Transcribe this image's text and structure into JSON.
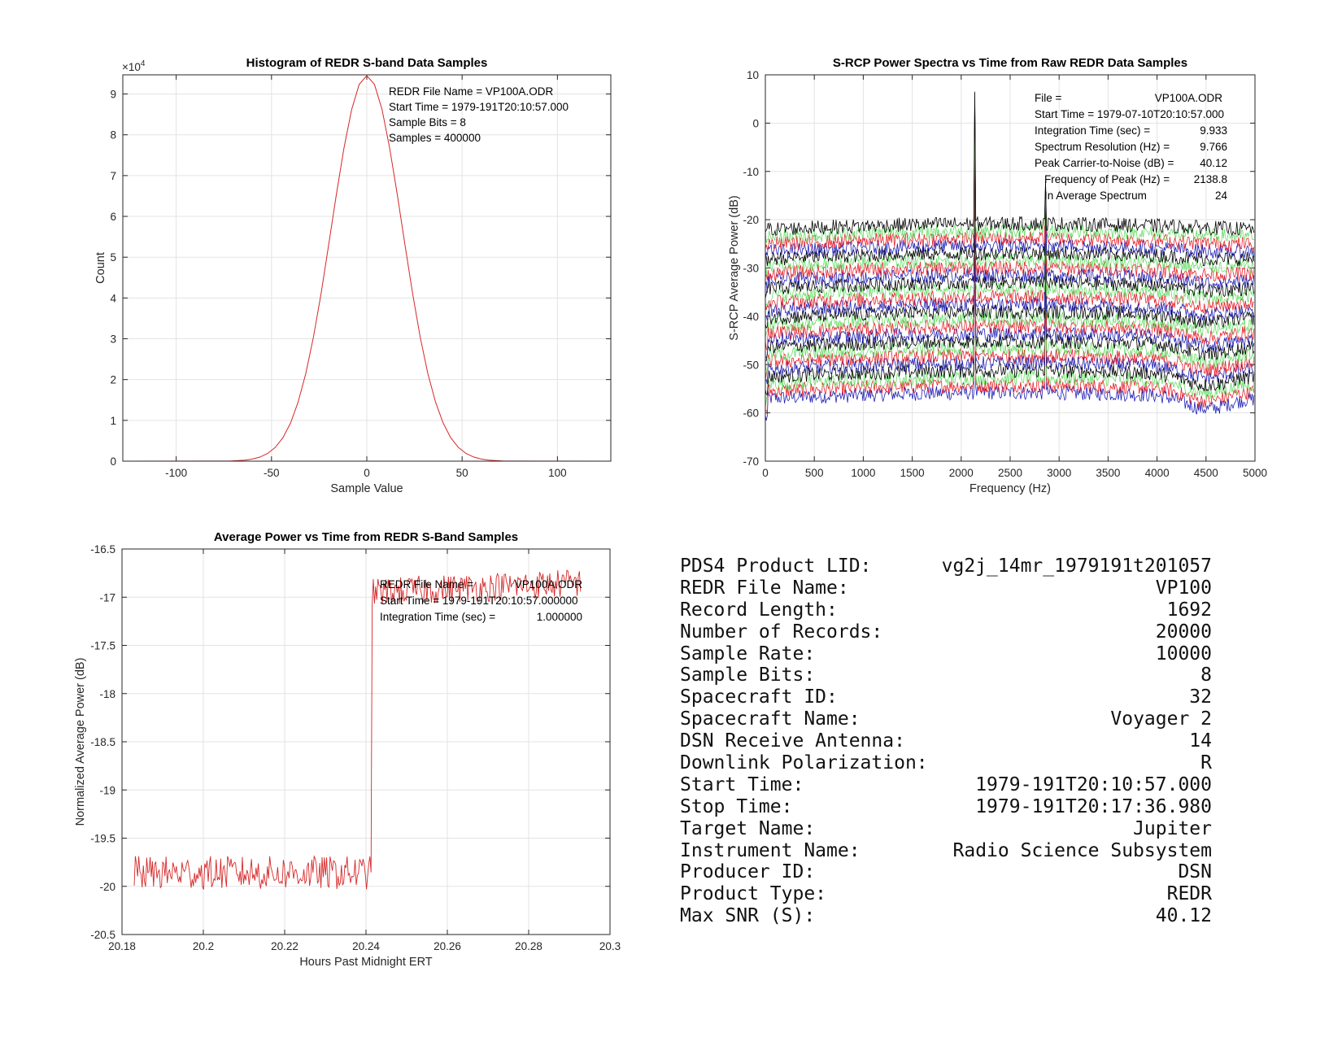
{
  "chart_data": [
    {
      "type": "line",
      "id": "histogram",
      "title": "Histogram of REDR S-band Data Samples",
      "xlabel": "Sample Value",
      "ylabel": "Count",
      "y_exponent_label": "×10",
      "y_exponent_power": "4",
      "xlim": [
        -128,
        128
      ],
      "ylim": [
        0,
        94700
      ],
      "xticks": [
        -100,
        -50,
        0,
        50,
        100
      ],
      "yticks": [
        0,
        10000,
        20000,
        30000,
        40000,
        50000,
        60000,
        70000,
        80000,
        90000
      ],
      "ytick_labels": [
        "0",
        "1",
        "2",
        "3",
        "4",
        "5",
        "6",
        "7",
        "8",
        "9"
      ],
      "grid": true,
      "color": "#d62728",
      "x": [
        -72,
        -64,
        -60,
        -56,
        -52,
        -48,
        -44,
        -40,
        -36,
        -32,
        -28,
        -24,
        -20,
        -16,
        -12,
        -8,
        -4,
        0,
        4,
        8,
        12,
        16,
        20,
        24,
        28,
        32,
        36,
        40,
        44,
        48,
        52,
        56,
        60,
        64,
        72
      ],
      "y": [
        20,
        250,
        520,
        1020,
        1900,
        3380,
        5760,
        9370,
        14530,
        21520,
        30450,
        41100,
        53030,
        65290,
        76740,
        86150,
        92340,
        94500,
        92340,
        86150,
        76740,
        65290,
        53030,
        41100,
        30450,
        21520,
        14530,
        9370,
        5760,
        3380,
        1900,
        1020,
        520,
        250,
        20
      ],
      "annotations": [
        "REDR File Name = VP100A.ODR",
        "Start Time = 1979-191T20:10:57.000",
        "Sample Bits = 8",
        "Samples = 400000"
      ]
    },
    {
      "type": "line",
      "id": "spectra",
      "title": "S-RCP Power Spectra vs Time from Raw REDR Data Samples",
      "xlabel": "Frequency (Hz)",
      "ylabel": "S-RCP Average Power (dB)",
      "xlim": [
        0,
        5000
      ],
      "ylim": [
        -70,
        10
      ],
      "xticks": [
        0,
        500,
        1000,
        1500,
        2000,
        2500,
        3000,
        3500,
        4000,
        4500,
        5000
      ],
      "yticks": [
        -70,
        -60,
        -50,
        -40,
        -30,
        -20,
        -10,
        0,
        10
      ],
      "grid": true,
      "series_count": 24,
      "series_colors": [
        "#000000",
        "#1f1fb4",
        "#e8202a",
        "#66dd66"
      ],
      "frequency_resolution_hz": 9.766,
      "lowest_series_level_db": -57,
      "highest_series_level_db": -22,
      "peaks": [
        {
          "frequency_hz": 2138.8,
          "max_db": 6.5
        },
        {
          "frequency_hz": 2860,
          "max_db": -12
        }
      ],
      "annotations": [
        {
          "label": "File =",
          "value": "VP100A.ODR"
        },
        {
          "label": "Start Time = 1979-07-10T20:10:57.000",
          "value": ""
        },
        {
          "label": "Integration Time (sec) =",
          "value": "9.933"
        },
        {
          "label": "Spectrum Resolution (Hz) =",
          "value": "9.766"
        },
        {
          "label": "Peak Carrier-to-Noise (dB) =",
          "value": "40.12"
        },
        {
          "label": "Frequency of Peak (Hz) =",
          "value": "2138.8"
        },
        {
          "label": "In Average Spectrum",
          "value": "24"
        }
      ]
    },
    {
      "type": "line",
      "id": "avgpower",
      "title": "Average Power vs Time from REDR S-Band Samples",
      "xlabel": "Hours Past Midnight ERT",
      "ylabel": "Normalized Average Power (dB)",
      "xlim": [
        20.18,
        20.3
      ],
      "ylim": [
        -20.5,
        -16.5
      ],
      "xticks": [
        20.18,
        20.2,
        20.22,
        20.24,
        20.26,
        20.28,
        20.3
      ],
      "yticks": [
        -20.5,
        -20,
        -19.5,
        -19,
        -18.5,
        -18,
        -17.5,
        -17,
        -16.5
      ],
      "grid": true,
      "color": "#d62728",
      "x_start": 20.183,
      "x_step_change": 20.2415,
      "x_end": 20.293,
      "level_before_db": -19.86,
      "level_after_db": -16.95,
      "level_after_end_db": -16.85,
      "annotations": [
        {
          "label": "REDR File Name =",
          "value": "VP100A.ODR"
        },
        {
          "label": "Start Time = 1979-191T20:10:57.000000",
          "value": ""
        },
        {
          "label": "Integration Time (sec) =",
          "value": "1.000000"
        }
      ]
    }
  ],
  "info": [
    {
      "label": "PDS4 Product LID:",
      "value": "vg2j_14mr_1979191t201057"
    },
    {
      "label": "REDR File Name:",
      "value": "VP100"
    },
    {
      "label": "Record Length:",
      "value": "1692"
    },
    {
      "label": "Number of Records:",
      "value": "20000"
    },
    {
      "label": "Sample Rate:",
      "value": "10000"
    },
    {
      "label": "Sample Bits:",
      "value": "8"
    },
    {
      "label": "Spacecraft ID:",
      "value": "32"
    },
    {
      "label": "Spacecraft Name:",
      "value": "Voyager 2"
    },
    {
      "label": "DSN Receive Antenna:",
      "value": "14"
    },
    {
      "label": "Downlink Polarization:",
      "value": "R"
    },
    {
      "label": "Start Time:",
      "value": "1979-191T20:10:57.000"
    },
    {
      "label": "Stop Time:",
      "value": "1979-191T20:17:36.980"
    },
    {
      "label": "Target Name:",
      "value": "Jupiter"
    },
    {
      "label": "Instrument Name:",
      "value": "Radio Science Subsystem"
    },
    {
      "label": "Producer ID:",
      "value": "DSN"
    },
    {
      "label": "Product Type:",
      "value": "REDR"
    },
    {
      "label": "Max SNR (S):",
      "value": "40.12"
    }
  ]
}
